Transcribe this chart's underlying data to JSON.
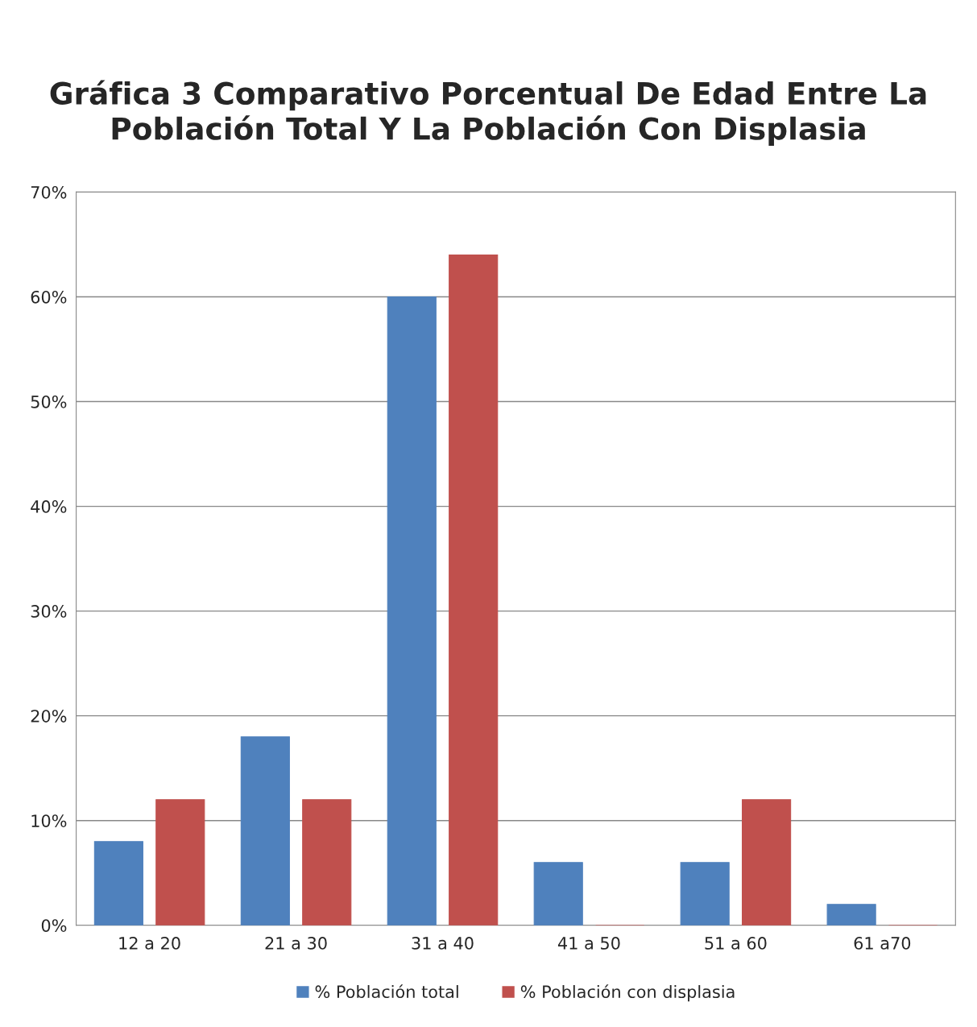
{
  "chart_data": {
    "type": "bar",
    "title": "Gráfica 3 Comparativo Porcentual De Edad Entre La Población Total Y La Población Con Displasia",
    "categories": [
      "12 a 20",
      "21 a 30",
      "31 a 40",
      "41 a 50",
      "51 a 60",
      "61 a70"
    ],
    "series": [
      {
        "name": "% Población total",
        "color": "#4f81bd",
        "values": [
          8,
          18,
          60,
          6,
          6,
          2
        ]
      },
      {
        "name": "% Población con displasia",
        "color": "#c0504d",
        "values": [
          12,
          12,
          64,
          0,
          12,
          0
        ]
      }
    ],
    "ylim": [
      0,
      70
    ],
    "yticks": [
      {
        "value": 0,
        "label": "0%"
      },
      {
        "value": 10,
        "label": "10%"
      },
      {
        "value": 20,
        "label": "20%"
      },
      {
        "value": 30,
        "label": "30%"
      },
      {
        "value": 40,
        "label": "40%"
      },
      {
        "value": 50,
        "label": "50%"
      },
      {
        "value": 60,
        "label": "60%"
      },
      {
        "value": 70,
        "label": "70%"
      }
    ],
    "grid": "y",
    "legend": "bottom"
  }
}
